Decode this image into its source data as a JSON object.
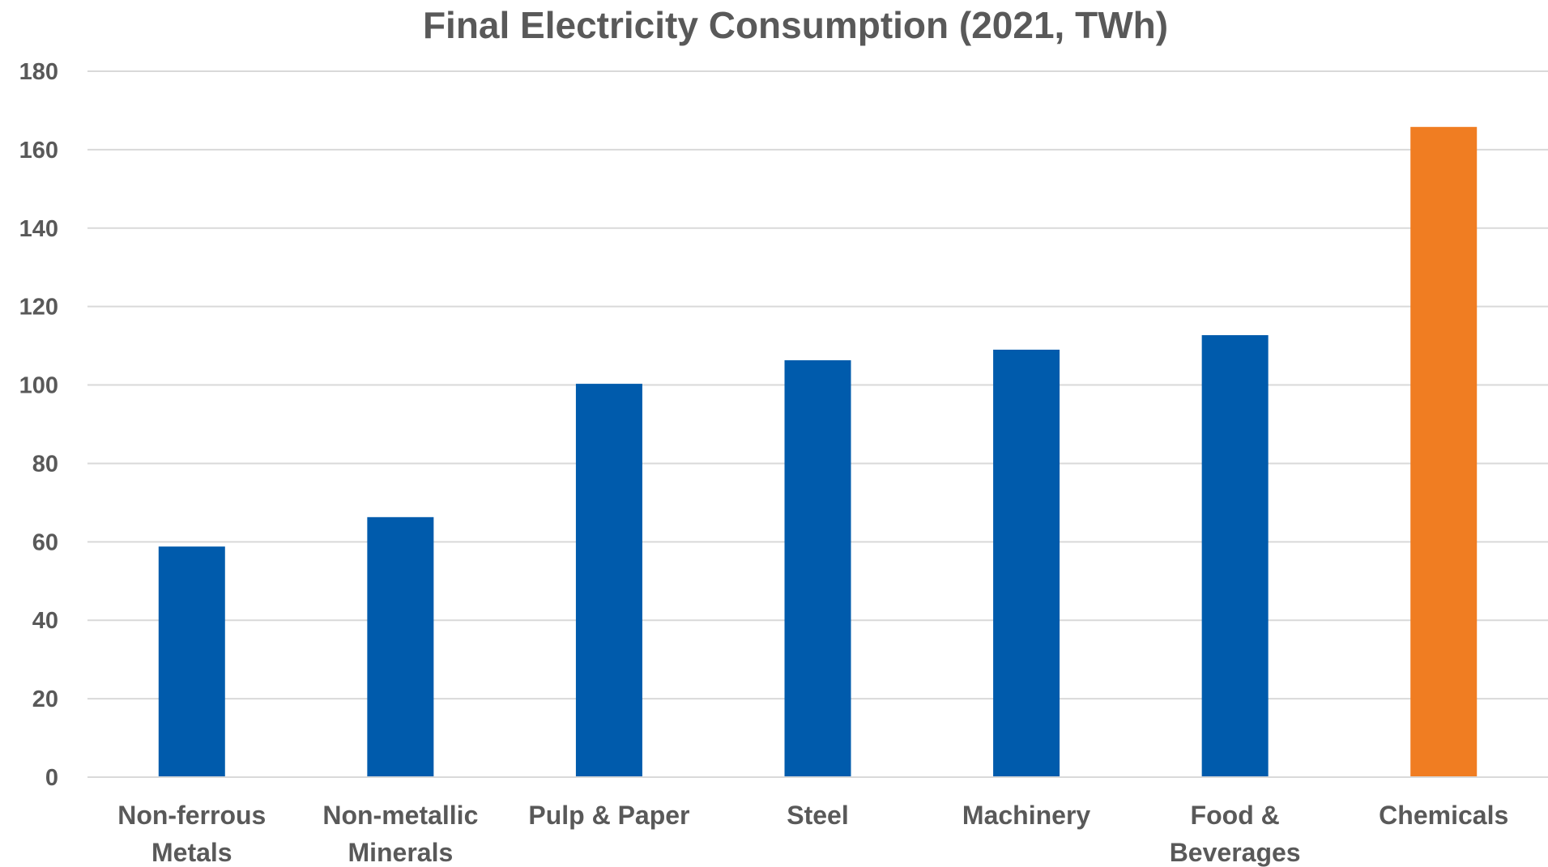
{
  "chart_data": {
    "type": "bar",
    "title": "Final Electricity Consumption (2021, TWh)",
    "xlabel": "",
    "ylabel": "",
    "categories": [
      [
        "Non-ferrous",
        "Metals"
      ],
      [
        "Non-metallic",
        "Minerals"
      ],
      [
        "Pulp & Paper"
      ],
      [
        "Steel"
      ],
      [
        "Machinery"
      ],
      [
        "Food &",
        "Beverages"
      ],
      [
        "Chemicals"
      ]
    ],
    "values": [
      58.8,
      66.3,
      100.3,
      106.3,
      109.0,
      112.7,
      165.8
    ],
    "bar_colors": [
      "#005bac",
      "#005bac",
      "#005bac",
      "#005bac",
      "#005bac",
      "#005bac",
      "#f07d22"
    ],
    "ylim": [
      0,
      180
    ],
    "yticks": [
      0,
      20,
      40,
      60,
      80,
      100,
      120,
      140,
      160,
      180
    ],
    "grid": true,
    "legend": "none"
  },
  "colors": {
    "primary_bar": "#005bac",
    "highlight_bar": "#f07d22",
    "text": "#595959",
    "grid": "#d9d9d9"
  }
}
